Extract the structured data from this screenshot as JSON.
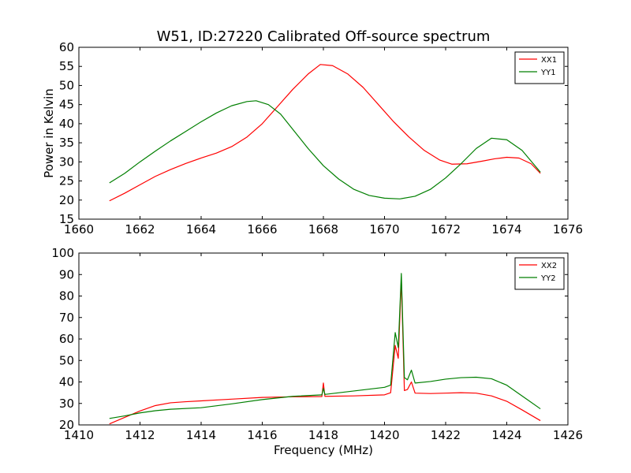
{
  "colors": {
    "red": "#ff0000",
    "green": "#007f00"
  },
  "chart_data": [
    {
      "type": "line",
      "title": "W51, ID:27220 Calibrated Off-source spectrum",
      "xlabel": "",
      "ylabel": "Power in Kelvin",
      "xlim": [
        1660,
        1676
      ],
      "ylim": [
        15,
        60
      ],
      "xticks": [
        "1660",
        "1662",
        "1664",
        "1666",
        "1668",
        "1670",
        "1672",
        "1674",
        "1676"
      ],
      "yticks": [
        "15",
        "20",
        "25",
        "30",
        "35",
        "40",
        "45",
        "50",
        "55",
        "60"
      ],
      "legend_position": "top-right",
      "grid": false,
      "series": [
        {
          "name": "XX1",
          "color": "#ff0000",
          "points": [
            [
              1661.0,
              19.8
            ],
            [
              1661.5,
              21.8
            ],
            [
              1662.0,
              24.0
            ],
            [
              1662.5,
              26.2
            ],
            [
              1663.0,
              28.0
            ],
            [
              1663.5,
              29.6
            ],
            [
              1664.0,
              31.0
            ],
            [
              1664.5,
              32.3
            ],
            [
              1665.0,
              34.0
            ],
            [
              1665.5,
              36.5
            ],
            [
              1666.0,
              40.0
            ],
            [
              1666.5,
              44.5
            ],
            [
              1667.0,
              49.0
            ],
            [
              1667.5,
              53.0
            ],
            [
              1667.9,
              55.5
            ],
            [
              1668.3,
              55.2
            ],
            [
              1668.8,
              53.0
            ],
            [
              1669.3,
              49.5
            ],
            [
              1669.8,
              45.0
            ],
            [
              1670.3,
              40.5
            ],
            [
              1670.8,
              36.5
            ],
            [
              1671.3,
              33.0
            ],
            [
              1671.8,
              30.5
            ],
            [
              1672.2,
              29.4
            ],
            [
              1672.7,
              29.5
            ],
            [
              1673.2,
              30.2
            ],
            [
              1673.6,
              30.8
            ],
            [
              1674.0,
              31.2
            ],
            [
              1674.4,
              31.0
            ],
            [
              1674.8,
              29.5
            ],
            [
              1675.1,
              27.0
            ]
          ]
        },
        {
          "name": "YY1",
          "color": "#007f00",
          "points": [
            [
              1661.0,
              24.5
            ],
            [
              1661.5,
              27.0
            ],
            [
              1662.0,
              30.0
            ],
            [
              1662.5,
              32.8
            ],
            [
              1663.0,
              35.5
            ],
            [
              1663.5,
              38.0
            ],
            [
              1664.0,
              40.5
            ],
            [
              1664.5,
              42.8
            ],
            [
              1665.0,
              44.7
            ],
            [
              1665.5,
              45.8
            ],
            [
              1665.8,
              46.0
            ],
            [
              1666.2,
              45.0
            ],
            [
              1666.6,
              42.5
            ],
            [
              1667.0,
              38.5
            ],
            [
              1667.5,
              33.5
            ],
            [
              1668.0,
              29.0
            ],
            [
              1668.5,
              25.5
            ],
            [
              1669.0,
              22.8
            ],
            [
              1669.5,
              21.2
            ],
            [
              1670.0,
              20.5
            ],
            [
              1670.5,
              20.3
            ],
            [
              1671.0,
              21.0
            ],
            [
              1671.5,
              22.8
            ],
            [
              1672.0,
              25.8
            ],
            [
              1672.5,
              29.5
            ],
            [
              1673.0,
              33.5
            ],
            [
              1673.5,
              36.2
            ],
            [
              1674.0,
              35.8
            ],
            [
              1674.5,
              33.0
            ],
            [
              1675.1,
              27.3
            ]
          ]
        }
      ]
    },
    {
      "type": "line",
      "title": "",
      "xlabel": "Frequency (MHz)",
      "ylabel": "",
      "xlim": [
        1410,
        1426
      ],
      "ylim": [
        20,
        100
      ],
      "xticks": [
        "1410",
        "1412",
        "1414",
        "1416",
        "1418",
        "1420",
        "1422",
        "1424",
        "1426"
      ],
      "yticks": [
        "20",
        "30",
        "40",
        "50",
        "60",
        "70",
        "80",
        "90",
        "100"
      ],
      "legend_position": "top-right",
      "grid": false,
      "series": [
        {
          "name": "XX2",
          "color": "#ff0000",
          "points": [
            [
              1411.0,
              20.5
            ],
            [
              1411.5,
              23.5
            ],
            [
              1412.0,
              26.5
            ],
            [
              1412.5,
              29.0
            ],
            [
              1413.0,
              30.3
            ],
            [
              1413.5,
              30.8
            ],
            [
              1414.0,
              31.2
            ],
            [
              1415.0,
              32.0
            ],
            [
              1416.0,
              32.8
            ],
            [
              1417.0,
              33.1
            ],
            [
              1417.95,
              33.2
            ],
            [
              1418.0,
              39.5
            ],
            [
              1418.05,
              33.3
            ],
            [
              1419.0,
              33.5
            ],
            [
              1420.0,
              34.0
            ],
            [
              1420.2,
              35.0
            ],
            [
              1420.35,
              57.0
            ],
            [
              1420.45,
              51.0
            ],
            [
              1420.55,
              88.0
            ],
            [
              1420.65,
              36.0
            ],
            [
              1420.75,
              36.5
            ],
            [
              1420.88,
              40.0
            ],
            [
              1421.0,
              34.8
            ],
            [
              1421.5,
              34.6
            ],
            [
              1422.0,
              34.8
            ],
            [
              1422.5,
              35.0
            ],
            [
              1423.0,
              34.8
            ],
            [
              1423.5,
              33.5
            ],
            [
              1424.0,
              31.0
            ],
            [
              1424.5,
              27.0
            ],
            [
              1425.1,
              22.0
            ]
          ]
        },
        {
          "name": "YY2",
          "color": "#007f00",
          "points": [
            [
              1411.0,
              23.0
            ],
            [
              1411.5,
              24.2
            ],
            [
              1412.0,
              25.6
            ],
            [
              1412.5,
              26.6
            ],
            [
              1413.0,
              27.3
            ],
            [
              1414.0,
              28.0
            ],
            [
              1415.0,
              29.8
            ],
            [
              1416.0,
              31.8
            ],
            [
              1417.0,
              33.3
            ],
            [
              1417.95,
              34.0
            ],
            [
              1418.0,
              37.0
            ],
            [
              1418.05,
              34.2
            ],
            [
              1419.0,
              35.8
            ],
            [
              1420.0,
              37.5
            ],
            [
              1420.2,
              38.5
            ],
            [
              1420.35,
              63.0
            ],
            [
              1420.45,
              56.0
            ],
            [
              1420.55,
              90.5
            ],
            [
              1420.65,
              42.0
            ],
            [
              1420.75,
              41.0
            ],
            [
              1420.88,
              45.5
            ],
            [
              1421.0,
              39.5
            ],
            [
              1421.5,
              40.2
            ],
            [
              1422.0,
              41.3
            ],
            [
              1422.5,
              42.0
            ],
            [
              1423.0,
              42.2
            ],
            [
              1423.5,
              41.5
            ],
            [
              1424.0,
              38.5
            ],
            [
              1424.5,
              33.5
            ],
            [
              1425.1,
              27.5
            ]
          ]
        }
      ]
    }
  ]
}
